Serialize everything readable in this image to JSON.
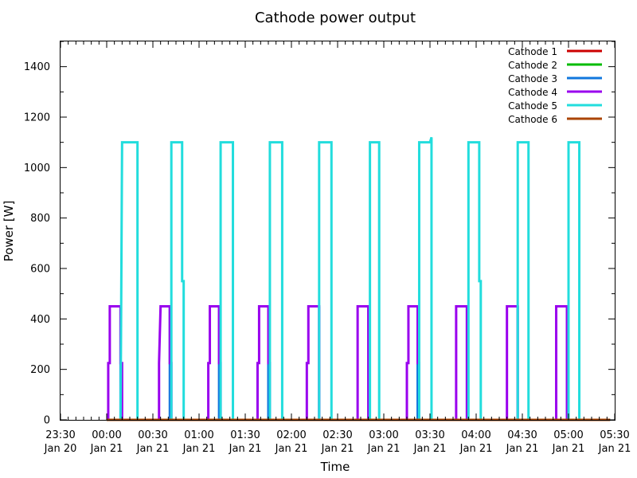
{
  "chart_data": {
    "type": "line",
    "title": "Cathode power output",
    "xlabel": "Time",
    "ylabel": "Power [W]",
    "ylim": [
      0,
      1500
    ],
    "yticks": [
      0,
      200,
      400,
      600,
      800,
      1000,
      1200,
      1400
    ],
    "xlim": [
      "Jan 20 23:30",
      "Jan 21 05:30"
    ],
    "xticks": [
      {
        "time": "Jan 20 23:30",
        "line1": "23:30",
        "line2": "Jan 20"
      },
      {
        "time": "Jan 21 00:00",
        "line1": "00:00",
        "line2": "Jan 21"
      },
      {
        "time": "Jan 21 00:30",
        "line1": "00:30",
        "line2": "Jan 21"
      },
      {
        "time": "Jan 21 01:00",
        "line1": "01:00",
        "line2": "Jan 21"
      },
      {
        "time": "Jan 21 01:30",
        "line1": "01:30",
        "line2": "Jan 21"
      },
      {
        "time": "Jan 21 02:00",
        "line1": "02:00",
        "line2": "Jan 21"
      },
      {
        "time": "Jan 21 02:30",
        "line1": "02:30",
        "line2": "Jan 21"
      },
      {
        "time": "Jan 21 03:00",
        "line1": "03:00",
        "line2": "Jan 21"
      },
      {
        "time": "Jan 21 03:30",
        "line1": "03:30",
        "line2": "Jan 21"
      },
      {
        "time": "Jan 21 04:00",
        "line1": "04:00",
        "line2": "Jan 21"
      },
      {
        "time": "Jan 21 04:30",
        "line1": "04:30",
        "line2": "Jan 21"
      },
      {
        "time": "Jan 21 05:00",
        "line1": "05:00",
        "line2": "Jan 21"
      },
      {
        "time": "Jan 21 05:30",
        "line1": "05:30",
        "line2": "Jan 21"
      }
    ],
    "grid": false,
    "legend_position": "top-right",
    "series": [
      {
        "name": "Cathode 1",
        "color": "#cc0000",
        "points": [
          [
            "Jan 21 00:00",
            0
          ],
          [
            "Jan 21 05:27",
            0
          ]
        ]
      },
      {
        "name": "Cathode 2",
        "color": "#00bb00",
        "points": [
          [
            "Jan 21 00:00",
            0
          ],
          [
            "Jan 21 05:27",
            0
          ]
        ]
      },
      {
        "name": "Cathode 3",
        "color": "#1177dd",
        "points": [
          [
            "Jan 21 00:00",
            0
          ],
          [
            "Jan 21 00:09",
            0
          ],
          [
            "Jan 21 00:09",
            450
          ],
          [
            "Jan 21 00:09",
            0
          ],
          [
            "Jan 21 00:41",
            0
          ],
          [
            "Jan 21 00:41",
            450
          ],
          [
            "Jan 21 00:41",
            0
          ],
          [
            "Jan 21 01:13",
            0
          ],
          [
            "Jan 21 01:13",
            450
          ],
          [
            "Jan 21 01:13",
            0
          ],
          [
            "Jan 21 01:45",
            0
          ],
          [
            "Jan 21 01:45",
            450
          ],
          [
            "Jan 21 01:45",
            0
          ],
          [
            "Jan 21 02:18",
            0
          ],
          [
            "Jan 21 02:18",
            450
          ],
          [
            "Jan 21 02:18",
            0
          ],
          [
            "Jan 21 02:50",
            0
          ],
          [
            "Jan 21 02:50",
            450
          ],
          [
            "Jan 21 02:50",
            0
          ],
          [
            "Jan 21 03:22",
            0
          ],
          [
            "Jan 21 03:22",
            450
          ],
          [
            "Jan 21 03:22",
            0
          ],
          [
            "Jan 21 03:54",
            0
          ],
          [
            "Jan 21 03:54",
            450
          ],
          [
            "Jan 21 03:54",
            0
          ],
          [
            "Jan 21 04:27",
            0
          ],
          [
            "Jan 21 04:27",
            450
          ],
          [
            "Jan 21 04:27",
            0
          ],
          [
            "Jan 21 04:59",
            0
          ],
          [
            "Jan 21 04:59",
            450
          ],
          [
            "Jan 21 04:59",
            0
          ],
          [
            "Jan 21 05:27",
            0
          ]
        ]
      },
      {
        "name": "Cathode 4",
        "color": "#9900ee",
        "points": [
          [
            "Jan 21 00:00",
            0
          ],
          [
            "Jan 21 00:01",
            0
          ],
          [
            "Jan 21 00:01",
            225
          ],
          [
            "Jan 21 00:02",
            225
          ],
          [
            "Jan 21 00:02",
            450
          ],
          [
            "Jan 21 00:09",
            450
          ],
          [
            "Jan 21 00:09",
            225
          ],
          [
            "Jan 21 00:10",
            225
          ],
          [
            "Jan 21 00:10",
            0
          ],
          [
            "Jan 21 00:34",
            0
          ],
          [
            "Jan 21 00:34",
            225
          ],
          [
            "Jan 21 00:34",
            225
          ],
          [
            "Jan 21 00:35",
            450
          ],
          [
            "Jan 21 00:41",
            450
          ],
          [
            "Jan 21 00:41",
            225
          ],
          [
            "Jan 21 00:42",
            225
          ],
          [
            "Jan 21 00:42",
            0
          ],
          [
            "Jan 21 01:06",
            0
          ],
          [
            "Jan 21 01:06",
            225
          ],
          [
            "Jan 21 01:07",
            225
          ],
          [
            "Jan 21 01:07",
            450
          ],
          [
            "Jan 21 01:13",
            450
          ],
          [
            "Jan 21 01:13",
            225
          ],
          [
            "Jan 21 01:14",
            225
          ],
          [
            "Jan 21 01:14",
            0
          ],
          [
            "Jan 21 01:38",
            0
          ],
          [
            "Jan 21 01:38",
            225
          ],
          [
            "Jan 21 01:39",
            225
          ],
          [
            "Jan 21 01:39",
            450
          ],
          [
            "Jan 21 01:45",
            450
          ],
          [
            "Jan 21 01:45",
            225
          ],
          [
            "Jan 21 01:46",
            225
          ],
          [
            "Jan 21 01:46",
            0
          ],
          [
            "Jan 21 02:10",
            0
          ],
          [
            "Jan 21 02:10",
            225
          ],
          [
            "Jan 21 02:11",
            225
          ],
          [
            "Jan 21 02:11",
            450
          ],
          [
            "Jan 21 02:18",
            450
          ],
          [
            "Jan 21 02:18",
            225
          ],
          [
            "Jan 21 02:18",
            225
          ],
          [
            "Jan 21 02:18",
            0
          ],
          [
            "Jan 21 02:43",
            0
          ],
          [
            "Jan 21 02:43",
            450
          ],
          [
            "Jan 21 02:50",
            450
          ],
          [
            "Jan 21 02:50",
            0
          ],
          [
            "Jan 21 03:15",
            0
          ],
          [
            "Jan 21 03:15",
            225
          ],
          [
            "Jan 21 03:16",
            225
          ],
          [
            "Jan 21 03:16",
            450
          ],
          [
            "Jan 21 03:22",
            450
          ],
          [
            "Jan 21 03:22",
            225
          ],
          [
            "Jan 21 03:23",
            225
          ],
          [
            "Jan 21 03:23",
            0
          ],
          [
            "Jan 21 03:47",
            0
          ],
          [
            "Jan 21 03:47",
            450
          ],
          [
            "Jan 21 03:54",
            450
          ],
          [
            "Jan 21 03:54",
            0
          ],
          [
            "Jan 21 04:20",
            0
          ],
          [
            "Jan 21 04:20",
            450
          ],
          [
            "Jan 21 04:27",
            450
          ],
          [
            "Jan 21 04:27",
            0
          ],
          [
            "Jan 21 04:52",
            0
          ],
          [
            "Jan 21 04:52",
            450
          ],
          [
            "Jan 21 04:59",
            450
          ],
          [
            "Jan 21 04:59",
            0
          ],
          [
            "Jan 21 05:27",
            0
          ]
        ]
      },
      {
        "name": "Cathode 5",
        "color": "#22dddd",
        "points": [
          [
            "Jan 21 00:00",
            0
          ],
          [
            "Jan 21 00:09",
            0
          ],
          [
            "Jan 21 00:10",
            1100
          ],
          [
            "Jan 21 00:20",
            1100
          ],
          [
            "Jan 21 00:20",
            0
          ],
          [
            "Jan 21 00:42",
            0
          ],
          [
            "Jan 21 00:42",
            1100
          ],
          [
            "Jan 21 00:49",
            1100
          ],
          [
            "Jan 21 00:49",
            550
          ],
          [
            "Jan 21 00:50",
            550
          ],
          [
            "Jan 21 00:50",
            0
          ],
          [
            "Jan 21 01:14",
            0
          ],
          [
            "Jan 21 01:14",
            1100
          ],
          [
            "Jan 21 01:22",
            1100
          ],
          [
            "Jan 21 01:22",
            0
          ],
          [
            "Jan 21 01:46",
            0
          ],
          [
            "Jan 21 01:46",
            1100
          ],
          [
            "Jan 21 01:54",
            1100
          ],
          [
            "Jan 21 01:54",
            0
          ],
          [
            "Jan 21 02:18",
            0
          ],
          [
            "Jan 21 02:18",
            1100
          ],
          [
            "Jan 21 02:26",
            1100
          ],
          [
            "Jan 21 02:26",
            0
          ],
          [
            "Jan 21 02:51",
            0
          ],
          [
            "Jan 21 02:51",
            1100
          ],
          [
            "Jan 21 02:57",
            1100
          ],
          [
            "Jan 21 02:57",
            0
          ],
          [
            "Jan 21 03:23",
            0
          ],
          [
            "Jan 21 03:23",
            1100
          ],
          [
            "Jan 21 03:30",
            1100
          ],
          [
            "Jan 21 03:31",
            1120
          ],
          [
            "Jan 21 03:31",
            550
          ],
          [
            "Jan 21 03:31",
            0
          ],
          [
            "Jan 21 03:55",
            0
          ],
          [
            "Jan 21 03:55",
            1100
          ],
          [
            "Jan 21 04:02",
            1100
          ],
          [
            "Jan 21 04:02",
            550
          ],
          [
            "Jan 21 04:03",
            550
          ],
          [
            "Jan 21 04:03",
            0
          ],
          [
            "Jan 21 04:27",
            0
          ],
          [
            "Jan 21 04:27",
            1100
          ],
          [
            "Jan 21 04:34",
            1100
          ],
          [
            "Jan 21 04:34",
            0
          ],
          [
            "Jan 21 05:00",
            0
          ],
          [
            "Jan 21 05:00",
            1100
          ],
          [
            "Jan 21 05:07",
            1100
          ],
          [
            "Jan 21 05:07",
            550
          ],
          [
            "Jan 21 05:07",
            550
          ],
          [
            "Jan 21 05:07",
            0
          ],
          [
            "Jan 21 05:27",
            0
          ]
        ]
      },
      {
        "name": "Cathode 6",
        "color": "#aa4400",
        "points": [
          [
            "Jan 21 00:00",
            0
          ],
          [
            "Jan 21 05:27",
            0
          ]
        ]
      }
    ]
  }
}
